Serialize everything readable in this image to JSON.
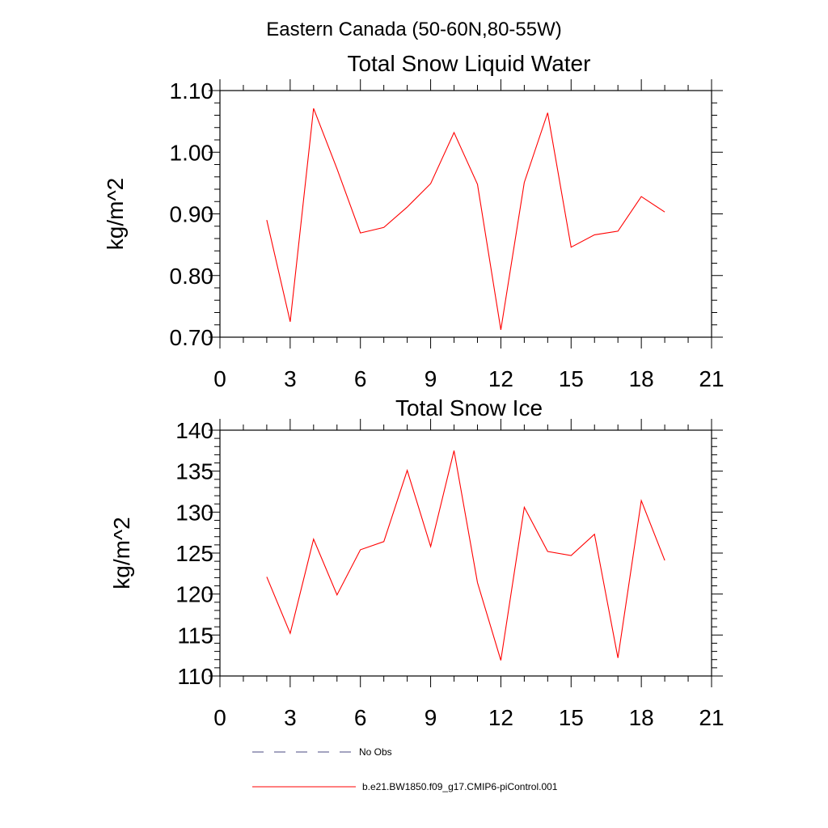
{
  "figure_title": "Eastern Canada (50-60N,80-55W)",
  "chart_data": [
    {
      "type": "line",
      "title": "Total Snow Liquid Water",
      "xlabel": "",
      "ylabel": "kg/m^2",
      "xlim": [
        0,
        21
      ],
      "ylim": [
        0.7,
        1.1
      ],
      "xticks": [
        "0",
        "3",
        "6",
        "9",
        "12",
        "15",
        "18",
        "21"
      ],
      "yticks": [
        "0.70",
        "0.80",
        "0.90",
        "1.00",
        "1.10"
      ],
      "series": [
        {
          "name": "b.e21.BW1850.f09_g17.CMIP6-piControl.001",
          "color": "#ff0000",
          "x": [
            2,
            3,
            4,
            5,
            6,
            7,
            8,
            9,
            10,
            11,
            12,
            13,
            14,
            15,
            16,
            17,
            18,
            19
          ],
          "y": [
            0.89,
            0.725,
            1.071,
            0.973,
            0.869,
            0.878,
            0.911,
            0.949,
            1.032,
            0.948,
            0.712,
            0.951,
            1.064,
            0.846,
            0.866,
            0.872,
            0.928,
            0.903
          ]
        }
      ]
    },
    {
      "type": "line",
      "title": "Total Snow Ice",
      "xlabel": "",
      "ylabel": "kg/m^2",
      "xlim": [
        0,
        21
      ],
      "ylim": [
        110,
        140
      ],
      "xticks": [
        "0",
        "3",
        "6",
        "9",
        "12",
        "15",
        "18",
        "21"
      ],
      "yticks": [
        "110",
        "115",
        "120",
        "125",
        "130",
        "135",
        "140"
      ],
      "series": [
        {
          "name": "b.e21.BW1850.f09_g17.CMIP6-piControl.001",
          "color": "#ff0000",
          "x": [
            2,
            3,
            4,
            5,
            6,
            7,
            8,
            9,
            10,
            11,
            12,
            13,
            14,
            15,
            16,
            17,
            18,
            19
          ],
          "y": [
            122.1,
            115.2,
            126.7,
            119.9,
            125.4,
            126.4,
            135.1,
            125.8,
            137.5,
            121.4,
            111.9,
            130.6,
            125.2,
            124.7,
            127.3,
            112.2,
            131.4,
            124.1
          ]
        }
      ]
    }
  ],
  "legend": [
    {
      "label": "No Obs",
      "color": "#4a4a80",
      "dash": true
    },
    {
      "label": "b.e21.BW1850.f09_g17.CMIP6-piControl.001",
      "color": "#ff0000",
      "dash": false
    }
  ]
}
